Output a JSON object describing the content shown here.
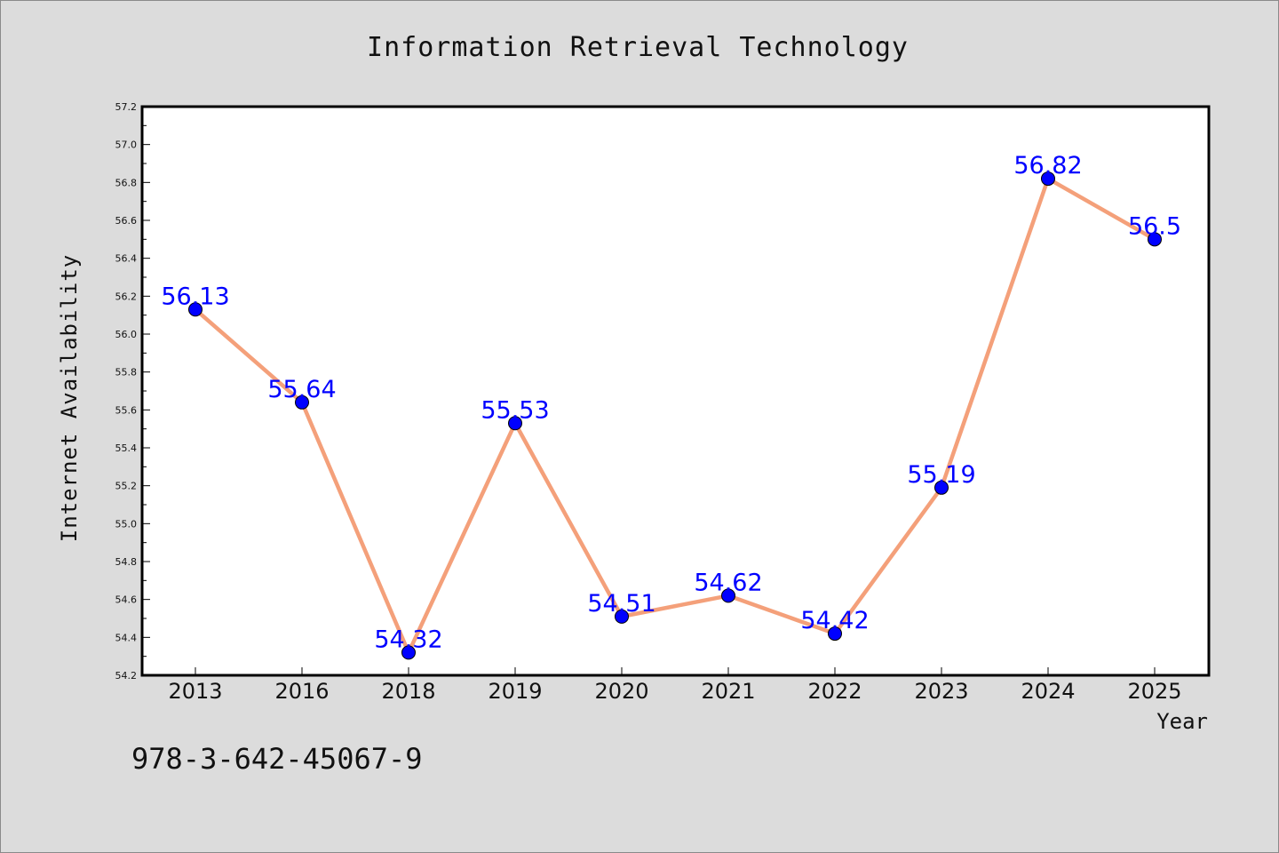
{
  "caption": "978-3-642-45067-9",
  "chart_data": {
    "type": "line",
    "title": "Information Retrieval Technology",
    "xlabel": "Year",
    "ylabel": "Internet Availability",
    "categories": [
      "2013",
      "2016",
      "2018",
      "2019",
      "2020",
      "2021",
      "2022",
      "2023",
      "2024",
      "2025"
    ],
    "values": [
      56.13,
      55.64,
      54.32,
      55.53,
      54.51,
      54.62,
      54.42,
      55.19,
      56.82,
      56.5
    ],
    "data_labels": [
      "56.13",
      "55.64",
      "54.32",
      "55.53",
      "54.51",
      "54.62",
      "54.42",
      "55.19",
      "56.82",
      "56.5"
    ],
    "ylim": [
      54.2,
      57.2
    ],
    "yticks": [
      "54.2",
      "54.4",
      "54.6",
      "54.8",
      "55.0",
      "55.2",
      "55.4",
      "55.6",
      "55.8",
      "56.0",
      "56.2",
      "56.4",
      "56.6",
      "56.8",
      "57.0",
      "57.2"
    ],
    "grid": false,
    "line_color": "#f4a07a",
    "marker_color": "#0000ff",
    "label_color": "#0000ff",
    "background": "#dcdcdc",
    "plot_background": "#ffffff"
  }
}
